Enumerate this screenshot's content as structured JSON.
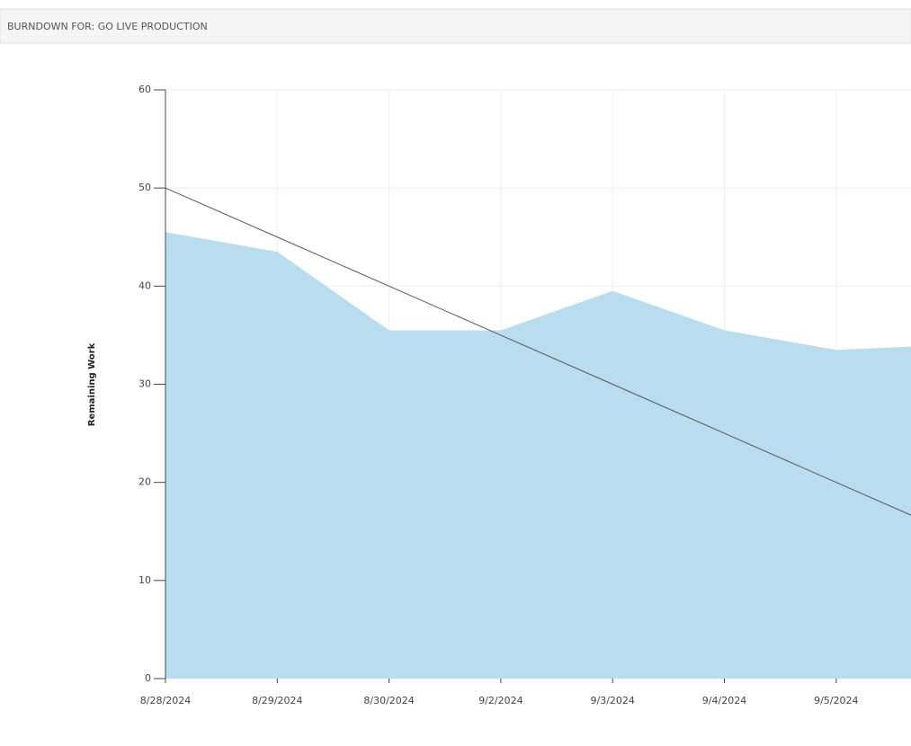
{
  "header": {
    "title": "BURNDOWN FOR: GO LIVE PRODUCTION"
  },
  "chart_data": {
    "type": "area",
    "ylabel": "Remaining Work",
    "categories": [
      "8/28/2024",
      "8/29/2024",
      "8/30/2024",
      "9/2/2024",
      "9/3/2024",
      "9/4/2024",
      "9/5/2024",
      null
    ],
    "series": [
      {
        "style": "area",
        "color": "#b9dcef",
        "values": [
          45.5,
          43.5,
          35.5,
          35.5,
          39.5,
          35.5,
          33.5,
          34
        ]
      },
      {
        "style": "line",
        "color": "#555555",
        "values": [
          50,
          45,
          40,
          35,
          30,
          25,
          20,
          15
        ]
      }
    ],
    "ylim": [
      0,
      60
    ],
    "yticks": [
      0,
      10,
      20,
      30,
      40,
      50,
      60
    ],
    "grid": true
  }
}
